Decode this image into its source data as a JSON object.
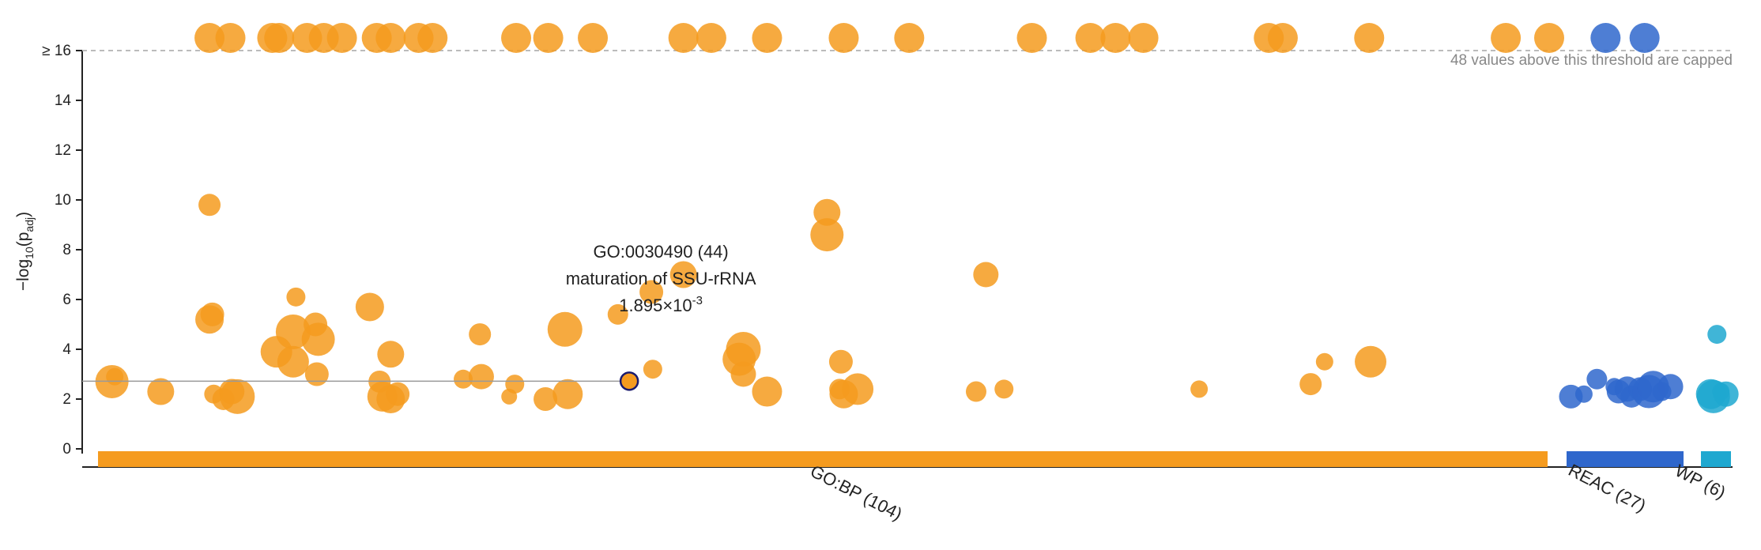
{
  "chart_data": {
    "type": "scatter",
    "ylabel": "−log10(padj)",
    "ylim": [
      0,
      16
    ],
    "y_ticks": [
      0,
      2,
      4,
      6,
      8,
      10,
      12,
      14,
      16
    ],
    "y_cap": 16,
    "y_cap_prefix": "≥",
    "cap_note": "48 values above this threshold are capped",
    "grid": false,
    "sources": [
      {
        "name": "GO:BP (104)",
        "color": "#f59b1f",
        "x_range": [
          0,
          104
        ],
        "points": [
          {
            "x": 1,
            "y": 2.7
          },
          {
            "x": 1.2,
            "y": 2.9
          },
          {
            "x": 4.5,
            "y": 2.3
          },
          {
            "x": 8,
            "y": 9.8
          },
          {
            "x": 8.2,
            "y": 5.4
          },
          {
            "x": 8,
            "y": 5.2
          },
          {
            "x": 8.3,
            "y": 2.2
          },
          {
            "x": 9,
            "y": 2.0
          },
          {
            "x": 9.6,
            "y": 2.3
          },
          {
            "x": 10,
            "y": 2.1
          },
          {
            "x": 12.8,
            "y": 3.9
          },
          {
            "x": 14.2,
            "y": 6.1
          },
          {
            "x": 14,
            "y": 4.7
          },
          {
            "x": 14,
            "y": 3.5
          },
          {
            "x": 15.6,
            "y": 5.0
          },
          {
            "x": 15.8,
            "y": 4.4
          },
          {
            "x": 15.7,
            "y": 3.0
          },
          {
            "x": 19.5,
            "y": 5.7
          },
          {
            "x": 20.2,
            "y": 2.7
          },
          {
            "x": 20.4,
            "y": 2.1
          },
          {
            "x": 21,
            "y": 3.8
          },
          {
            "x": 21,
            "y": 2.0
          },
          {
            "x": 21.5,
            "y": 2.2
          },
          {
            "x": 26.2,
            "y": 2.8
          },
          {
            "x": 27.4,
            "y": 4.6
          },
          {
            "x": 27.5,
            "y": 2.9
          },
          {
            "x": 29.5,
            "y": 2.1
          },
          {
            "x": 29.9,
            "y": 2.6
          },
          {
            "x": 32.1,
            "y": 2.0
          },
          {
            "x": 33.5,
            "y": 4.8
          },
          {
            "x": 33.7,
            "y": 2.2
          },
          {
            "x": 37.3,
            "y": 5.4
          },
          {
            "x": 39.7,
            "y": 6.3
          },
          {
            "x": 39.8,
            "y": 3.2
          },
          {
            "x": 42,
            "y": 7.0
          },
          {
            "x": 46.3,
            "y": 4.0
          },
          {
            "x": 46,
            "y": 3.6
          },
          {
            "x": 46.3,
            "y": 3.0
          },
          {
            "x": 48,
            "y": 2.3
          },
          {
            "x": 52.3,
            "y": 9.5
          },
          {
            "x": 52.3,
            "y": 8.6
          },
          {
            "x": 53.3,
            "y": 3.5
          },
          {
            "x": 53.2,
            "y": 2.4
          },
          {
            "x": 53.5,
            "y": 2.2
          },
          {
            "x": 54.5,
            "y": 2.4
          },
          {
            "x": 63,
            "y": 2.3
          },
          {
            "x": 63.7,
            "y": 7.0
          },
          {
            "x": 65,
            "y": 2.4
          },
          {
            "x": 79,
            "y": 2.4
          },
          {
            "x": 87,
            "y": 2.6
          },
          {
            "x": 88,
            "y": 3.5
          },
          {
            "x": 91.3,
            "y": 3.5
          },
          {
            "x": 8,
            "y": 16
          },
          {
            "x": 9.5,
            "y": 16
          },
          {
            "x": 12.5,
            "y": 16
          },
          {
            "x": 13,
            "y": 16
          },
          {
            "x": 15,
            "y": 16
          },
          {
            "x": 16.2,
            "y": 16
          },
          {
            "x": 17.5,
            "y": 16
          },
          {
            "x": 20,
            "y": 16
          },
          {
            "x": 21,
            "y": 16
          },
          {
            "x": 23,
            "y": 16
          },
          {
            "x": 24,
            "y": 16
          },
          {
            "x": 30,
            "y": 16
          },
          {
            "x": 32.3,
            "y": 16
          },
          {
            "x": 35.5,
            "y": 16
          },
          {
            "x": 42,
            "y": 16
          },
          {
            "x": 44,
            "y": 16
          },
          {
            "x": 48,
            "y": 16
          },
          {
            "x": 53.5,
            "y": 16
          },
          {
            "x": 58.2,
            "y": 16
          },
          {
            "x": 67,
            "y": 16
          },
          {
            "x": 71.2,
            "y": 16
          },
          {
            "x": 73,
            "y": 16
          },
          {
            "x": 75,
            "y": 16
          },
          {
            "x": 84,
            "y": 16
          },
          {
            "x": 85,
            "y": 16
          },
          {
            "x": 91.2,
            "y": 16
          },
          {
            "x": 101,
            "y": 16
          },
          {
            "x": 104.2,
            "y": 16
          }
        ],
        "highlight": {
          "x": 27,
          "y": 2.72,
          "id": "GO:0030490 (44)",
          "name": "maturation of SSU-rRNA",
          "p_mantissa": "1.895×10",
          "p_exponent": "-3"
        }
      },
      {
        "name": "REAC (27)",
        "color": "#2f67cc",
        "x_range": [
          0,
          27
        ],
        "points": [
          {
            "x": 1,
            "y": 2.1
          },
          {
            "x": 4,
            "y": 2.2
          },
          {
            "x": 7,
            "y": 2.8
          },
          {
            "x": 11,
            "y": 2.5
          },
          {
            "x": 12,
            "y": 2.3
          },
          {
            "x": 14,
            "y": 2.4
          },
          {
            "x": 15,
            "y": 2.1
          },
          {
            "x": 17,
            "y": 2.4
          },
          {
            "x": 19,
            "y": 2.3
          },
          {
            "x": 20,
            "y": 2.5
          },
          {
            "x": 22,
            "y": 2.3
          },
          {
            "x": 24,
            "y": 2.5
          },
          {
            "x": 9,
            "y": 16
          },
          {
            "x": 18,
            "y": 16
          }
        ]
      },
      {
        "name": "WP (6)",
        "color": "#1fa8d0",
        "x_range": [
          0,
          6
        ],
        "points": [
          {
            "x": 2,
            "y": 2.2
          },
          {
            "x": 2.5,
            "y": 2.1
          },
          {
            "x": 3.2,
            "y": 4.6
          },
          {
            "x": 4,
            "y": 2.3
          },
          {
            "x": 5,
            "y": 2.2
          }
        ]
      }
    ]
  }
}
